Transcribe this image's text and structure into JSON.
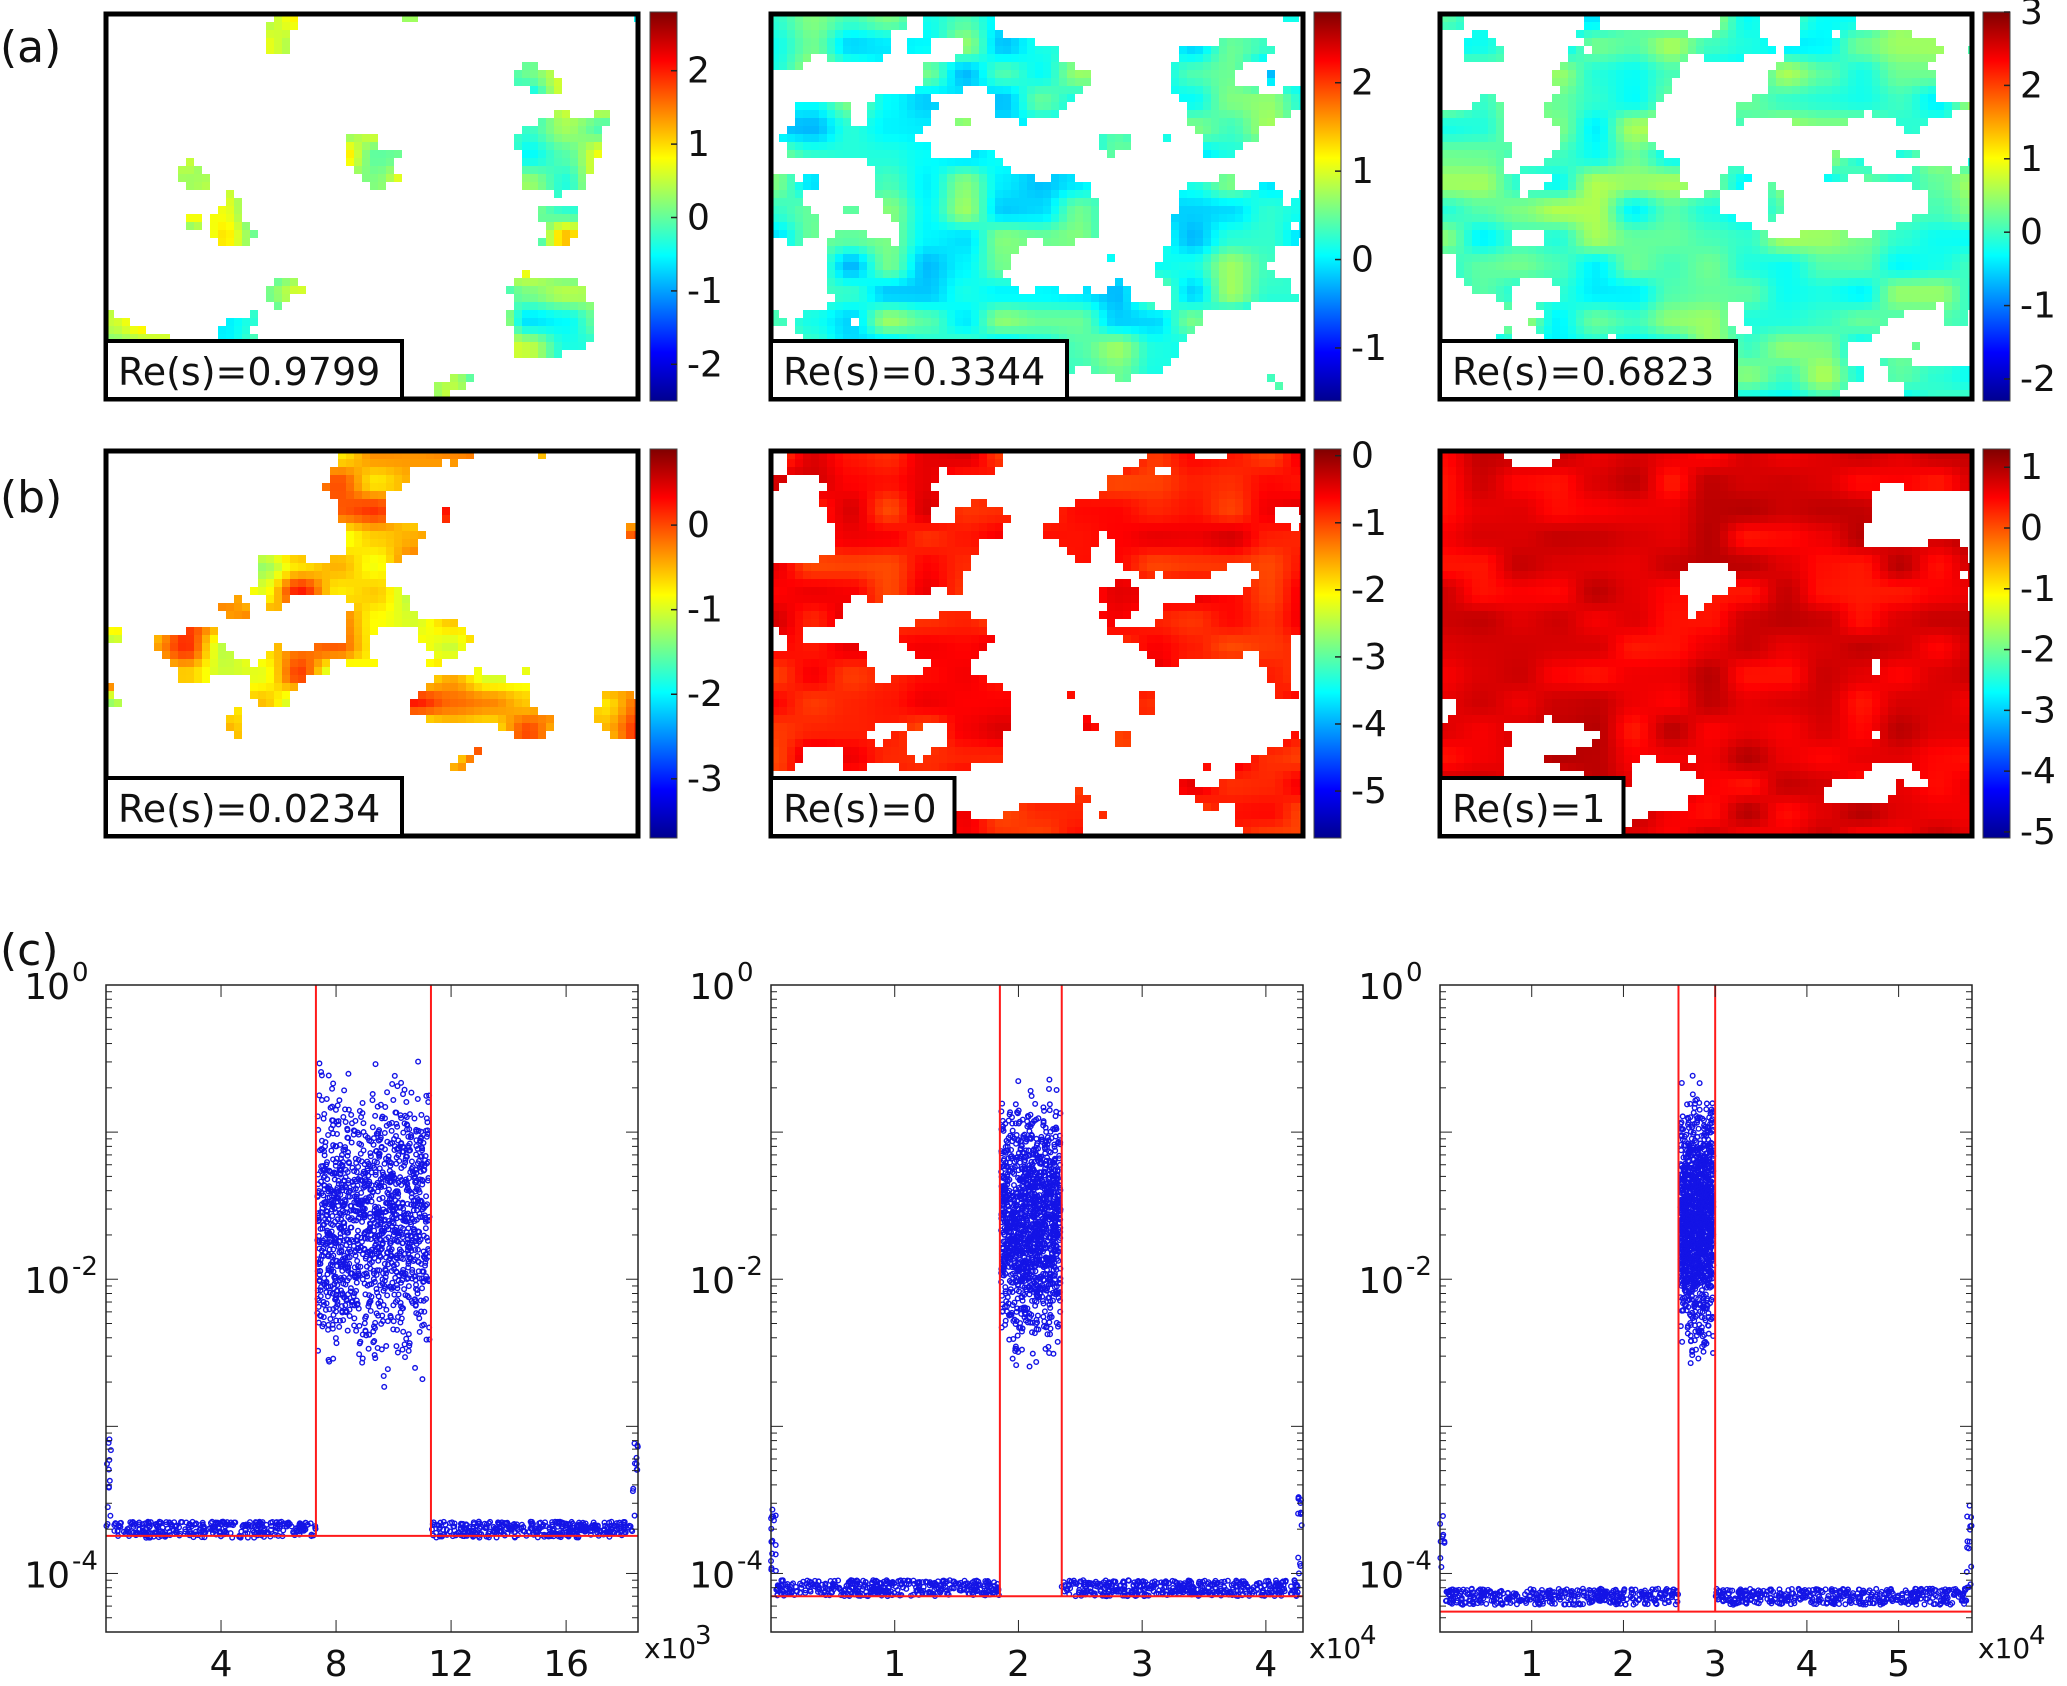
{
  "figure": {
    "panel_labels": [
      "(a)",
      "(b)",
      "(c)"
    ]
  },
  "chart_data": [
    {
      "type": "heatmap",
      "row": "a",
      "title": "",
      "annotation": "Re(s)=0.9799",
      "colorbar": {
        "ticks": [
          "-2",
          "-1",
          "0",
          "1",
          "2"
        ],
        "range": [
          -2.5,
          2.8
        ]
      }
    },
    {
      "type": "heatmap",
      "row": "a",
      "title": "",
      "annotation": "Re(s)=0.3344",
      "colorbar": {
        "ticks": [
          "-1",
          "0",
          "1",
          "2"
        ],
        "range": [
          -1.6,
          2.8
        ]
      }
    },
    {
      "type": "heatmap",
      "row": "a",
      "title": "",
      "annotation": "Re(s)=0.6823",
      "colorbar": {
        "ticks": [
          "-2",
          "-1",
          "0",
          "1",
          "2",
          "3"
        ],
        "range": [
          -2.3,
          3.0
        ]
      }
    },
    {
      "type": "heatmap",
      "row": "b",
      "title": "",
      "annotation": "Re(s)=0.0234",
      "colorbar": {
        "ticks": [
          "-3",
          "-2",
          "-1",
          "0"
        ],
        "range": [
          -3.7,
          0.9
        ]
      }
    },
    {
      "type": "heatmap",
      "row": "b",
      "title": "",
      "annotation": "Re(s)=0",
      "colorbar": {
        "ticks": [
          "-5",
          "-4",
          "-3",
          "-2",
          "-1",
          "0"
        ],
        "range": [
          -5.7,
          0.1
        ]
      }
    },
    {
      "type": "heatmap",
      "row": "b",
      "title": "",
      "annotation": "Re(s)=1",
      "colorbar": {
        "ticks": [
          "-5",
          "-4",
          "-3",
          "-2",
          "-1",
          "0",
          "1"
        ],
        "range": [
          -5.1,
          1.3
        ]
      }
    },
    {
      "type": "scatter",
      "row": "c",
      "title": "",
      "yscale": "log",
      "ylim": [
        4e-05,
        1
      ],
      "yticks": [
        {
          "base": "10",
          "exp": "-4"
        },
        {
          "base": "10",
          "exp": "-2"
        },
        {
          "base": "10",
          "exp": "0"
        }
      ],
      "xlim": [
        0,
        18.5
      ],
      "xticks": [
        "4",
        "8",
        "12",
        "16"
      ],
      "xtick_values": [
        4,
        8,
        12,
        16
      ],
      "xmultiplier": {
        "base": "x10",
        "exp": "3"
      },
      "vlines": [
        7.3,
        11.3
      ],
      "hline": 0.00018,
      "band": {
        "x": [
          7.35,
          11.25
        ],
        "min": 0.0015,
        "max": 0.4
      },
      "baseline": 0.0002
    },
    {
      "type": "scatter",
      "row": "c",
      "title": "",
      "yscale": "log",
      "ylim": [
        4e-05,
        1
      ],
      "yticks": [
        {
          "base": "10",
          "exp": "-4"
        },
        {
          "base": "10",
          "exp": "-2"
        },
        {
          "base": "10",
          "exp": "0"
        }
      ],
      "xlim": [
        0,
        4.3
      ],
      "xticks": [
        "1",
        "2",
        "3",
        "4"
      ],
      "xtick_values": [
        1,
        2,
        3,
        4
      ],
      "xmultiplier": {
        "base": "x10",
        "exp": "4"
      },
      "vlines": [
        1.85,
        2.35
      ],
      "hline": 7e-05,
      "band": {
        "x": [
          1.86,
          2.34
        ],
        "min": 0.002,
        "max": 0.3
      },
      "baseline": 8e-05
    },
    {
      "type": "scatter",
      "row": "c",
      "title": "",
      "yscale": "log",
      "ylim": [
        4e-05,
        1
      ],
      "yticks": [
        {
          "base": "10",
          "exp": "-4"
        },
        {
          "base": "10",
          "exp": "-2"
        },
        {
          "base": "10",
          "exp": "0"
        }
      ],
      "xlim": [
        0,
        5.8
      ],
      "xticks": [
        "1",
        "2",
        "3",
        "4",
        "5"
      ],
      "xtick_values": [
        1,
        2,
        3,
        4,
        5
      ],
      "xmultiplier": {
        "base": "x10",
        "exp": "4"
      },
      "vlines": [
        2.6,
        3.0
      ],
      "hline": 5.5e-05,
      "band": {
        "x": [
          2.62,
          2.98
        ],
        "min": 0.002,
        "max": 0.3
      },
      "baseline": 7e-05
    }
  ]
}
